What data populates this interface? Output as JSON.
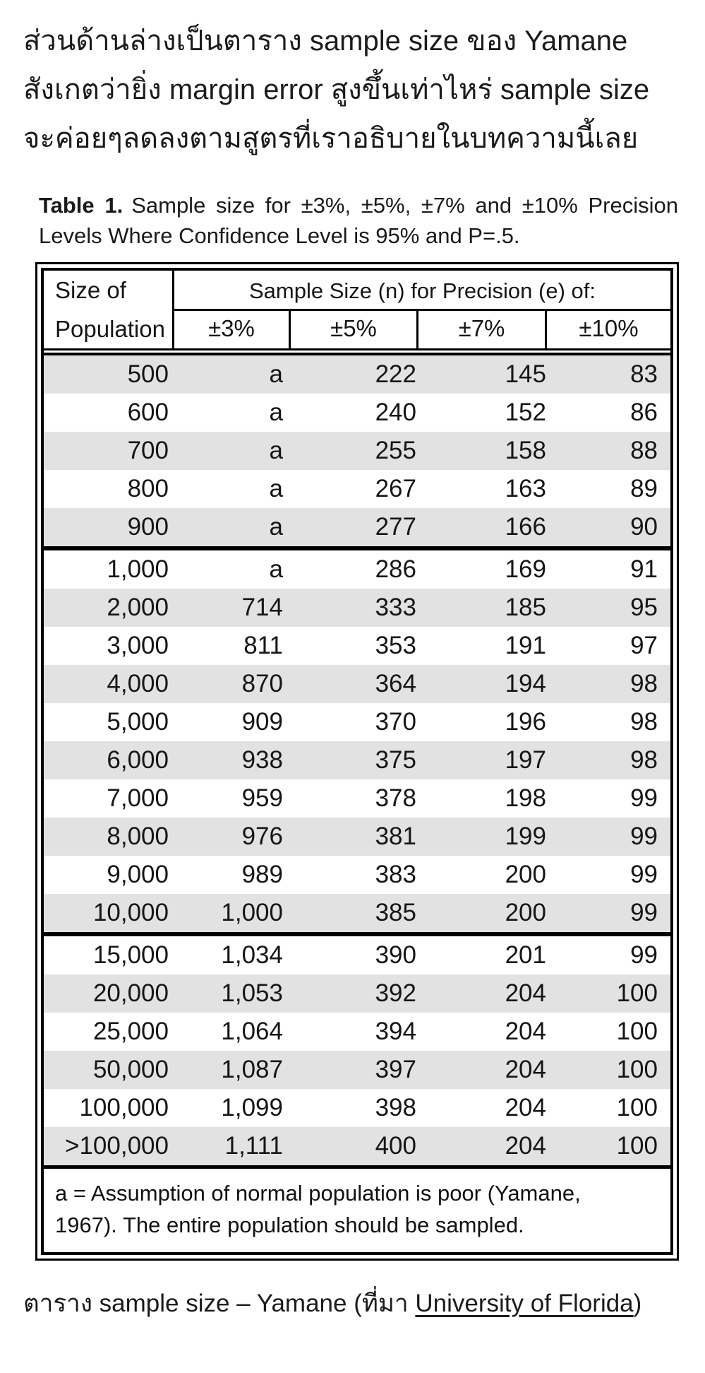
{
  "intro": {
    "lines": [
      "ส่วนด้านล่างเป็นตาราง sample size ของ Yamane",
      "สังเกตว่ายิ่ง margin error สูงขึ้นเท่าไหร่ sample size",
      "จะค่อยๆลดลงตามสูตรที่เราอธิบายในบทความนี้เลย"
    ]
  },
  "table": {
    "title_bold": "Table 1.",
    "title_rest": "Sample size for ±3%, ±5%, ±7% and ±10% Precision Levels Where Confidence Level is 95% and P=.5.",
    "header": {
      "col1_line1": "Size of",
      "col1_line2": "Population",
      "group_title": "Sample Size (n) for Precision (e) of:",
      "precision_cols": [
        "±3%",
        "±5%",
        "±7%",
        "±10%"
      ]
    },
    "groups": [
      {
        "rows": [
          [
            "500",
            "a",
            "222",
            "145",
            "83"
          ],
          [
            "600",
            "a",
            "240",
            "152",
            "86"
          ],
          [
            "700",
            "a",
            "255",
            "158",
            "88"
          ],
          [
            "800",
            "a",
            "267",
            "163",
            "89"
          ],
          [
            "900",
            "a",
            "277",
            "166",
            "90"
          ]
        ]
      },
      {
        "rows": [
          [
            "1,000",
            "a",
            "286",
            "169",
            "91"
          ],
          [
            "2,000",
            "714",
            "333",
            "185",
            "95"
          ],
          [
            "3,000",
            "811",
            "353",
            "191",
            "97"
          ],
          [
            "4,000",
            "870",
            "364",
            "194",
            "98"
          ],
          [
            "5,000",
            "909",
            "370",
            "196",
            "98"
          ],
          [
            "6,000",
            "938",
            "375",
            "197",
            "98"
          ],
          [
            "7,000",
            "959",
            "378",
            "198",
            "99"
          ],
          [
            "8,000",
            "976",
            "381",
            "199",
            "99"
          ],
          [
            "9,000",
            "989",
            "383",
            "200",
            "99"
          ],
          [
            "10,000",
            "1,000",
            "385",
            "200",
            "99"
          ]
        ]
      },
      {
        "rows": [
          [
            "15,000",
            "1,034",
            "390",
            "201",
            "99"
          ],
          [
            "20,000",
            "1,053",
            "392",
            "204",
            "100"
          ],
          [
            "25,000",
            "1,064",
            "394",
            "204",
            "100"
          ],
          [
            "50,000",
            "1,087",
            "397",
            "204",
            "100"
          ],
          [
            "100,000",
            "1,099",
            "398",
            "204",
            "100"
          ],
          [
            ">100,000",
            "1,111",
            "400",
            "204",
            "100"
          ]
        ]
      }
    ],
    "footnote_lines": [
      "a = Assumption of normal population is poor (Yamane,",
      "1967).  The entire population should be sampled."
    ]
  },
  "caption": {
    "prefix": "ตาราง sample size – Yamane (ที่มา ",
    "link": "University of Florida",
    "suffix": ")"
  },
  "colors": {
    "row_shade": "#e3e2e2",
    "border": "#000000",
    "text": "#1b1b1b"
  }
}
